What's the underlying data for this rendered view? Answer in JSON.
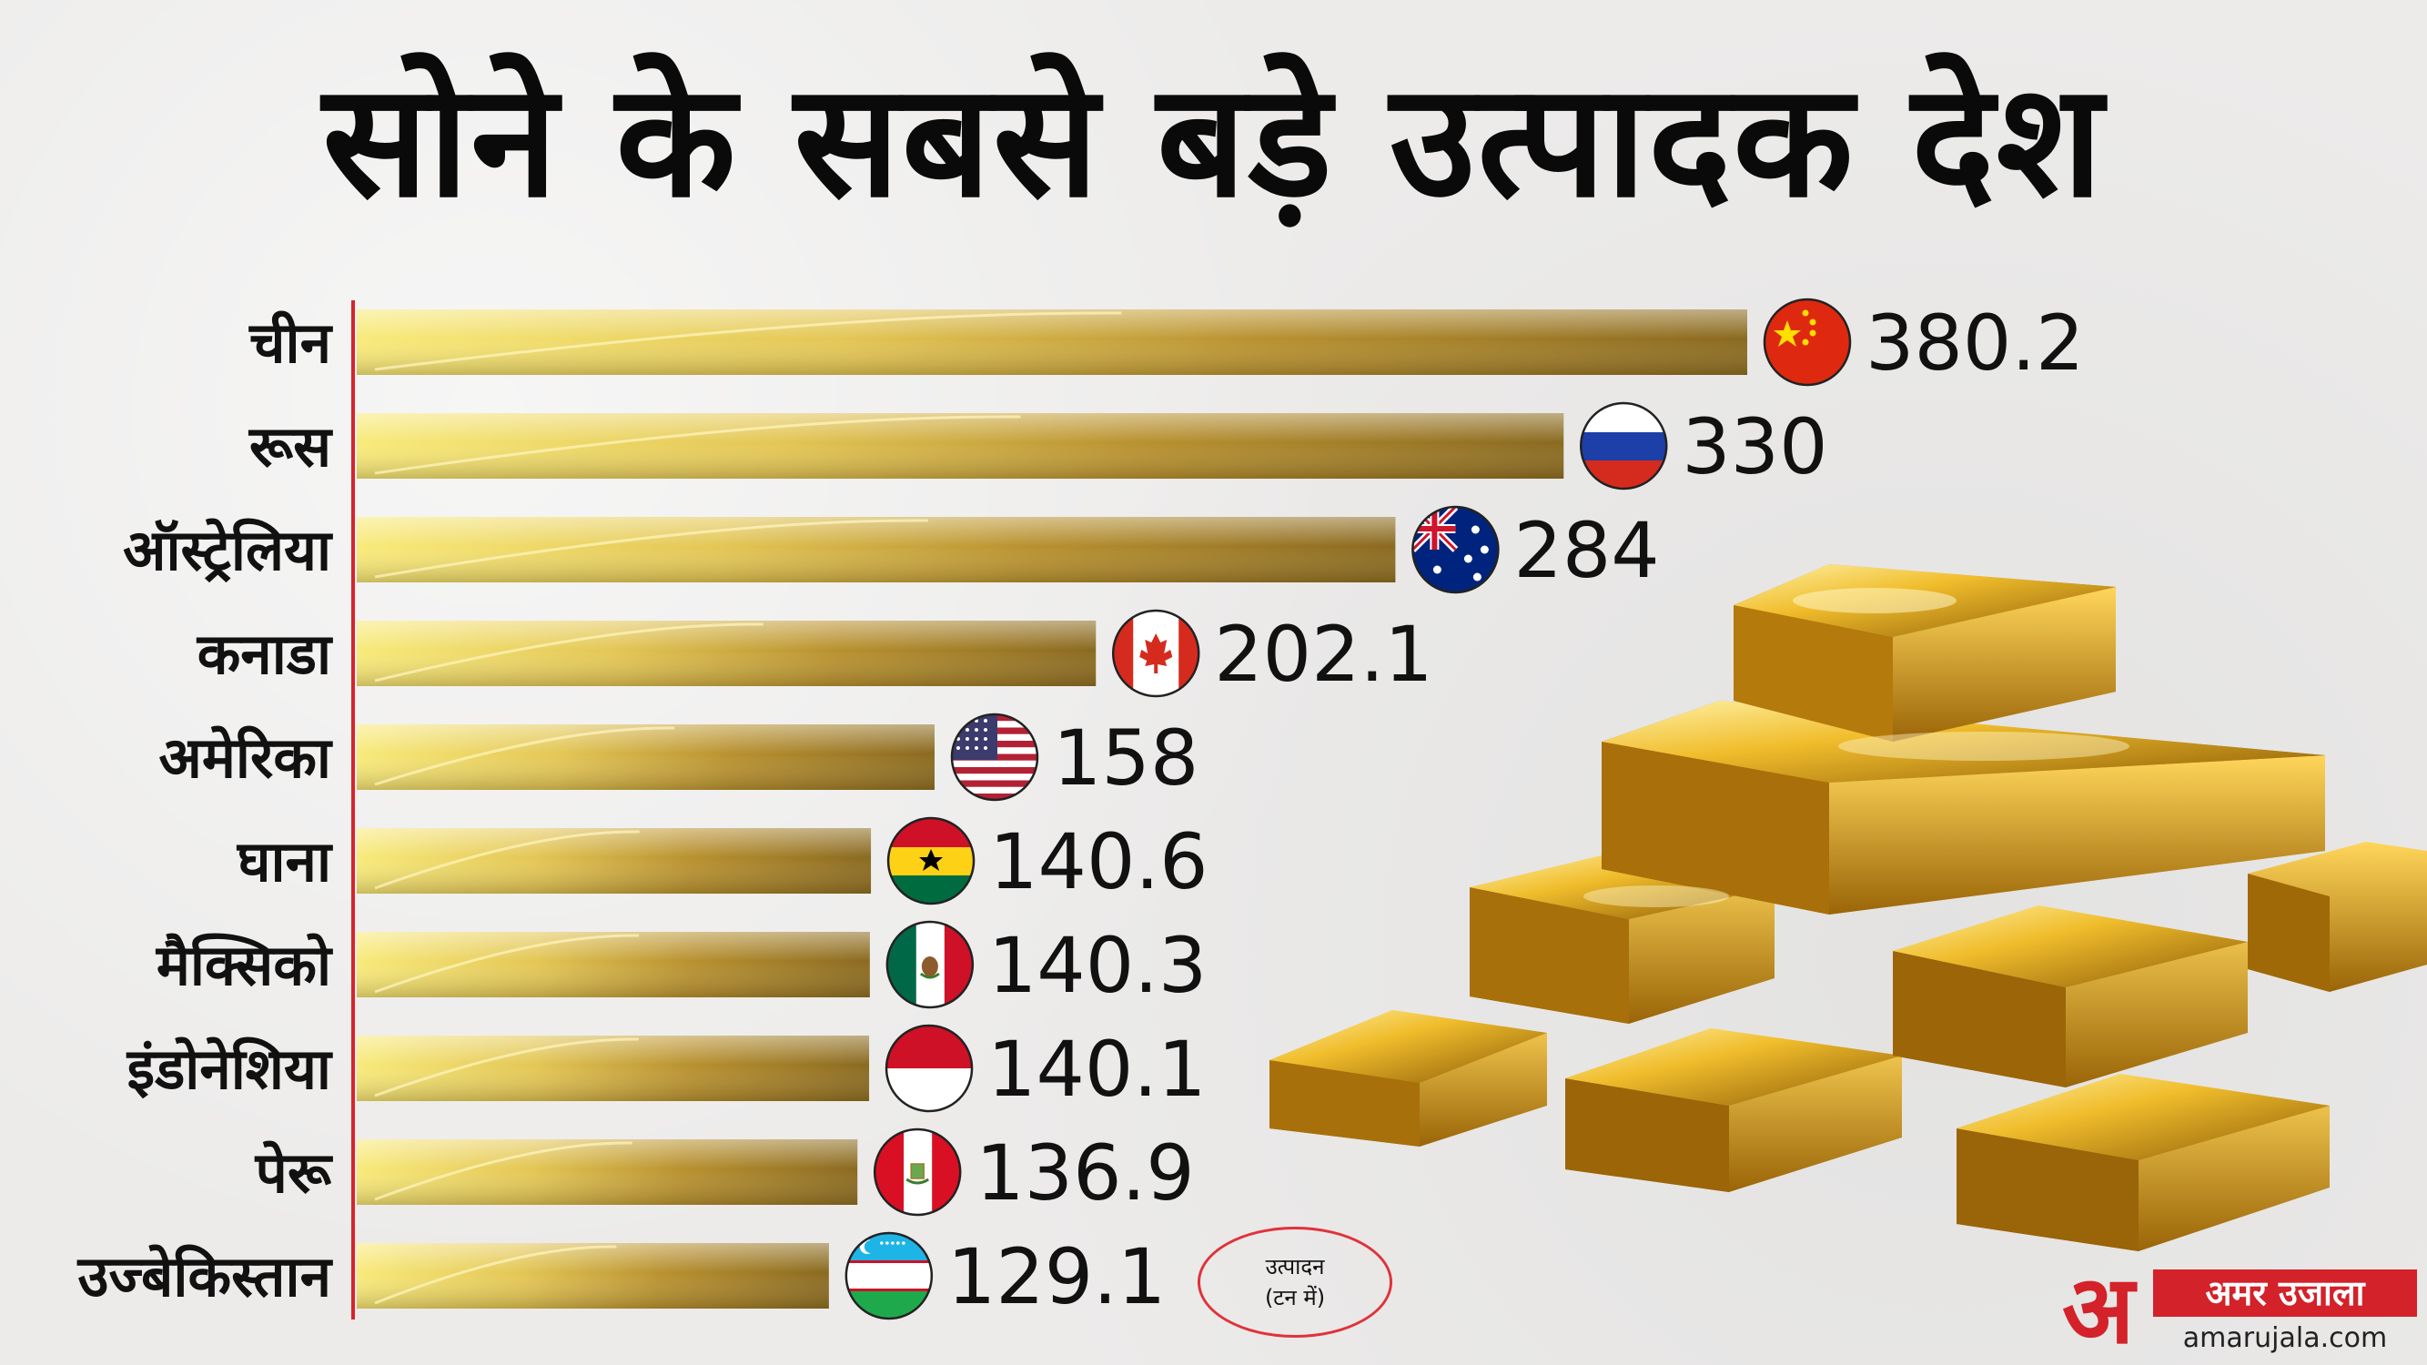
{
  "title": "सोने के सबसे बड़े उत्पादक देश",
  "unit_badge": {
    "line1": "उत्पादन",
    "line2": "(टन में)"
  },
  "logo": {
    "mark": "अ",
    "name": "अमर उजाला",
    "url": "amarujala.com"
  },
  "colors": {
    "bar_light": "#f6e36a",
    "bar_mid": "#c9a43c",
    "bar_dark": "#7d5f1c",
    "axis": "#d9232d",
    "text": "#111111",
    "gold": "#d9a21b"
  },
  "chart_data": {
    "type": "bar",
    "orientation": "horizontal",
    "title": "सोने के सबसे बड़े उत्पादक देश",
    "unit": "उत्पादन (टन में)",
    "categories": [
      "चीन",
      "रूस",
      "ऑस्ट्रेलिया",
      "कनाडा",
      "अमेरिका",
      "घाना",
      "मैक्सिको",
      "इंडोनेशिया",
      "पेरू",
      "उज्बेकिस्तान"
    ],
    "values": [
      380.2,
      330,
      284,
      202.1,
      158,
      140.6,
      140.3,
      140.1,
      136.9,
      129.1
    ],
    "value_labels": [
      "380.2",
      "330",
      "284",
      "202.1",
      "158",
      "140.6",
      "140.3",
      "140.1",
      "136.9",
      "129.1"
    ],
    "flags": [
      "china-flag-icon",
      "russia-flag-icon",
      "australia-flag-icon",
      "canada-flag-icon",
      "usa-flag-icon",
      "ghana-flag-icon",
      "mexico-flag-icon",
      "indonesia-flag-icon",
      "peru-flag-icon",
      "uzbekistan-flag-icon"
    ],
    "xlim": [
      0,
      380.2
    ],
    "grid": false,
    "legend": "none"
  }
}
